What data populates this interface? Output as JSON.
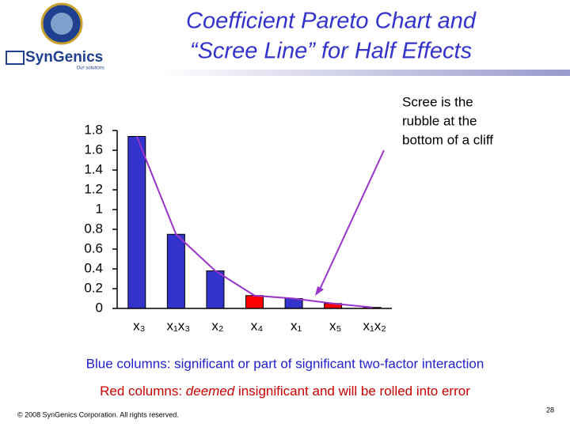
{
  "header": {
    "title_lines": [
      "Coefficient Pareto Chart and",
      "“Scree Line” for Half Effects"
    ],
    "logo_text": "SynGenics",
    "logo_tagline": "Our solutions"
  },
  "chart_data": {
    "type": "bar",
    "categories": [
      "x₃",
      "x₁x₃",
      "x₂",
      "x₄",
      "x₁",
      "x₅",
      "x₁x₂"
    ],
    "values": [
      1.74,
      0.75,
      0.38,
      0.13,
      0.1,
      0.05,
      0.01
    ],
    "colors": [
      "#3333cc",
      "#3333cc",
      "#3333cc",
      "#ff0000",
      "#3333cc",
      "#ff0000",
      "#ff0000"
    ],
    "scree_line_color": "#9933cc",
    "ylim": [
      0,
      1.8
    ],
    "yticks": [
      0,
      0.2,
      0.4,
      0.6,
      0.8,
      1,
      1.2,
      1.4,
      1.6,
      1.8
    ],
    "grid": false,
    "annotation": [
      "Scree is the",
      "rubble at the",
      "bottom of a cliff"
    ]
  },
  "captions": {
    "blue": "Blue columns: significant or part of significant two-factor interaction",
    "red": [
      "Red columns: ",
      "deemed",
      " insignificant and will be rolled into error"
    ]
  },
  "footer": {
    "copyright": "© 2008 SynGenics Corporation. All rights reserved.",
    "page": "28"
  }
}
